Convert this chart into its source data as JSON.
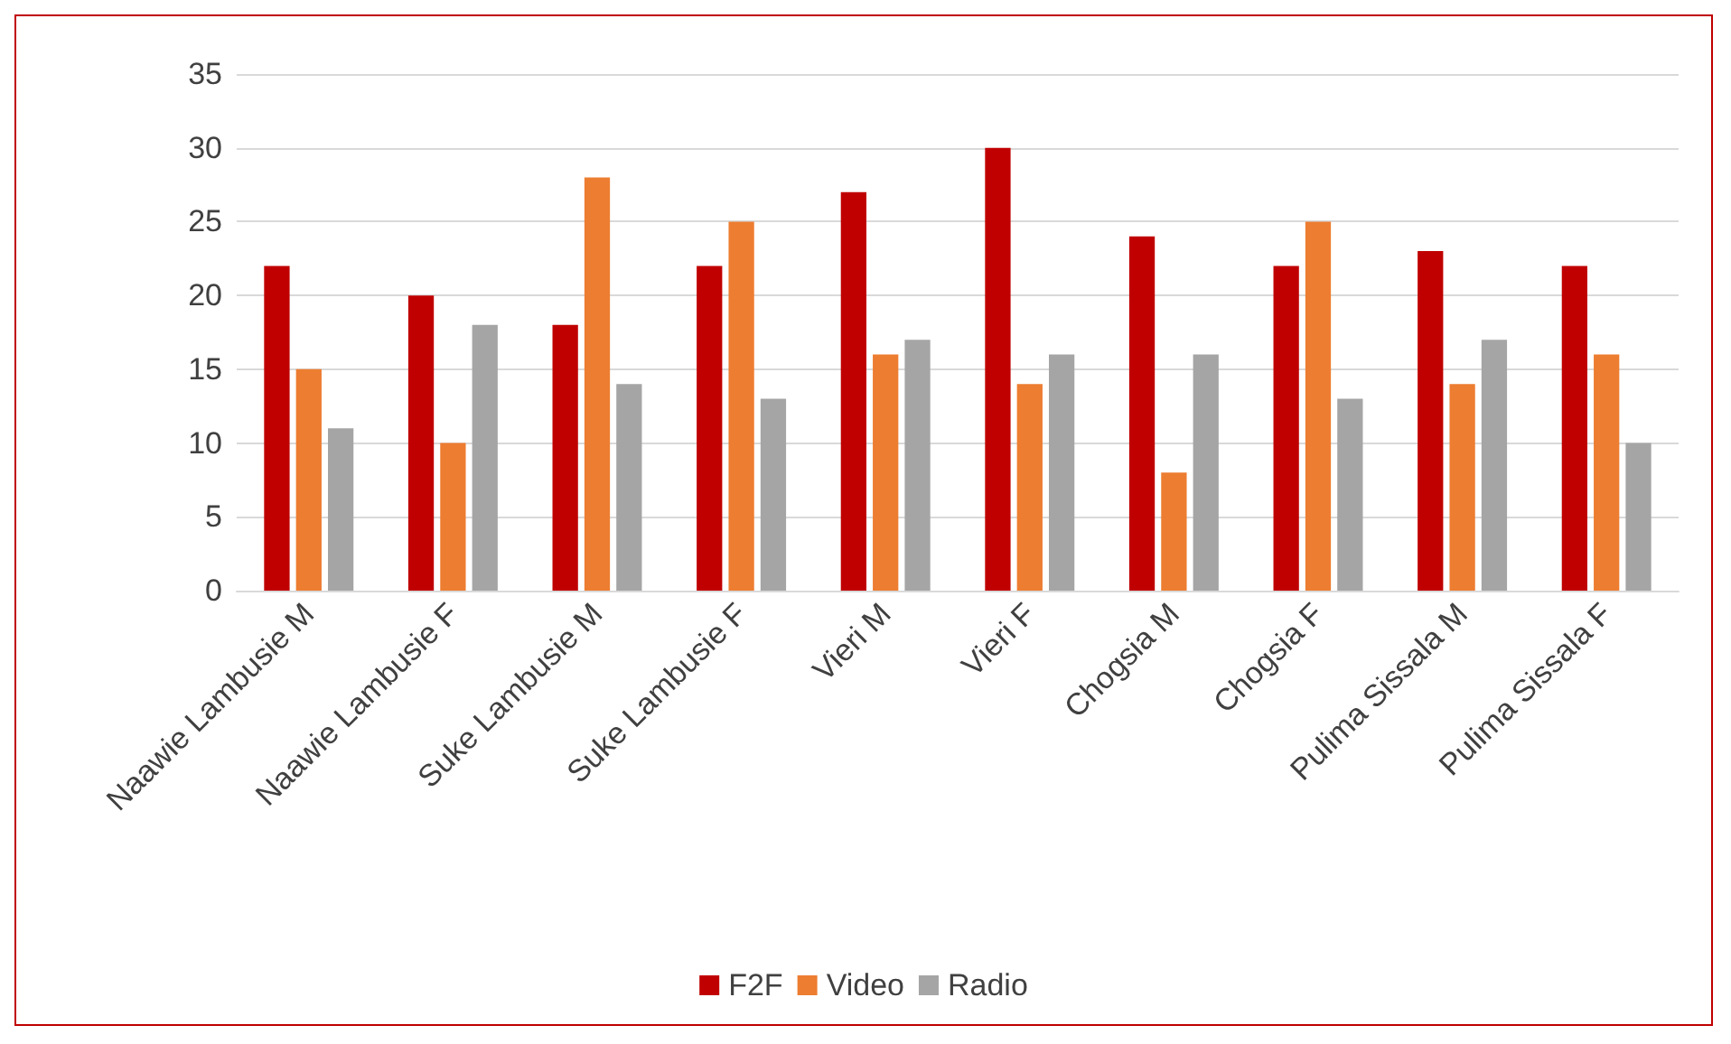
{
  "chart_data": {
    "type": "bar",
    "categories": [
      "Naawie Lambusie M",
      "Naawie Lambusie F",
      "Suke Lambusie M",
      "Suke Lambusie F",
      "Vieri M",
      "Vieri F",
      "Chogsia M",
      "Chogsia F",
      "Pulima Sissala M",
      "Pulima Sissala F"
    ],
    "series": [
      {
        "name": "F2F",
        "color": "#c00000",
        "values": [
          22,
          20,
          18,
          22,
          27,
          30,
          24,
          22,
          23,
          22
        ]
      },
      {
        "name": "Video",
        "color": "#ed7d31",
        "values": [
          15,
          10,
          28,
          25,
          16,
          14,
          8,
          25,
          14,
          16
        ]
      },
      {
        "name": "Radio",
        "color": "#a5a5a5",
        "values": [
          11,
          18,
          14,
          13,
          17,
          16,
          16,
          13,
          17,
          10
        ]
      }
    ],
    "ylim": [
      0,
      35
    ],
    "yticks": [
      0,
      5,
      10,
      15,
      20,
      25,
      30,
      35
    ],
    "grid": "y",
    "legend": "bottom"
  }
}
